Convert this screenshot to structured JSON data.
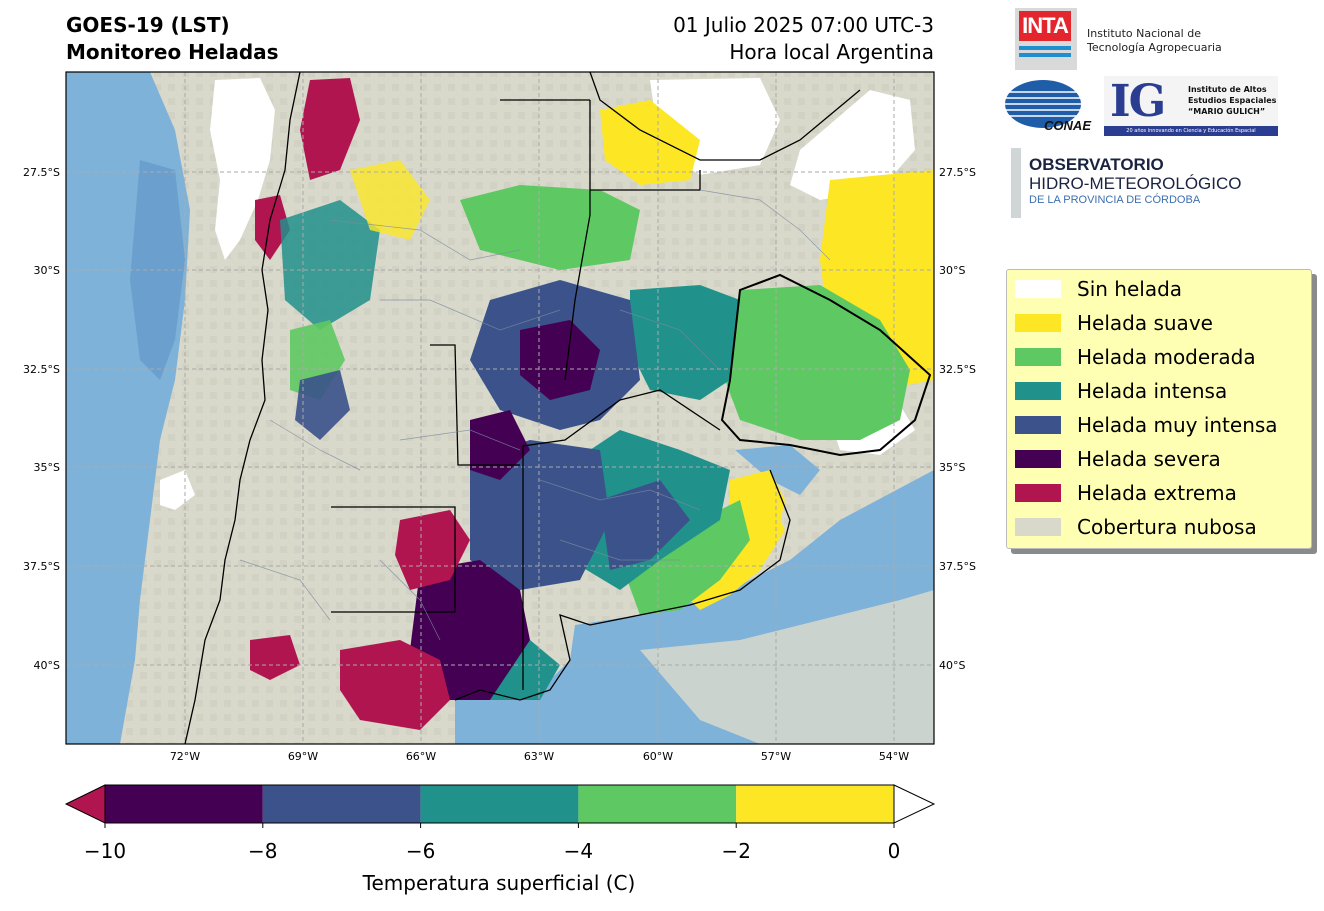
{
  "header": {
    "title_line1": "GOES-19 (LST)",
    "title_line2": "Monitoreo Heladas",
    "date_line1": "01 Julio 2025 07:00 UTC-3",
    "date_line2": "Hora local Argentina"
  },
  "map": {
    "lat_ticks": [
      "27.5°S",
      "30°S",
      "32.5°S",
      "35°S",
      "37.5°S",
      "40°S"
    ],
    "lon_ticks": [
      "72°W",
      "69°W",
      "66°W",
      "63°W",
      "60°W",
      "57°W",
      "54°W"
    ],
    "lat_range": [
      -41.9,
      -24.9
    ],
    "lon_range": [
      -75.0,
      -53.0
    ],
    "grid": true
  },
  "legend": {
    "items": [
      {
        "label": "Sin helada",
        "color": "#ffffff"
      },
      {
        "label": "Helada suave",
        "color": "#fde725"
      },
      {
        "label": "Helada moderada",
        "color": "#5ec962"
      },
      {
        "label": "Helada intensa",
        "color": "#21918c"
      },
      {
        "label": "Helada muy intensa",
        "color": "#3b528b"
      },
      {
        "label": "Helada severa",
        "color": "#440154"
      },
      {
        "label": "Helada extrema",
        "color": "#b0154f"
      },
      {
        "label": "Cobertura nubosa",
        "color": "#d8d8cb"
      }
    ]
  },
  "colorbar": {
    "label": "Temperatura superficial (C)",
    "ticks": [
      "−10",
      "−8",
      "−6",
      "−4",
      "−2",
      "0"
    ],
    "tick_values": [
      -10,
      -8,
      -6,
      -4,
      -2,
      0
    ],
    "bins": [
      {
        "from": -10,
        "to": -8,
        "color": "#440154"
      },
      {
        "from": -8,
        "to": -6,
        "color": "#3b528b"
      },
      {
        "from": -6,
        "to": -4,
        "color": "#21918c"
      },
      {
        "from": -4,
        "to": -2,
        "color": "#5ec962"
      },
      {
        "from": -2,
        "to": 0,
        "color": "#fde725"
      }
    ],
    "under_color": "#b0154f",
    "over_color": "#ffffff"
  },
  "logos": {
    "inta": {
      "mark": "INTA",
      "line1": "Instituto Nacional de",
      "line2": "Tecnología Agropecuaria"
    },
    "conae": {
      "mark": "CONAE"
    },
    "ig": {
      "mark": "IG",
      "line1": "Instituto de Altos",
      "line2": "Estudios Espaciales",
      "line3": "“MARIO GULICH”",
      "bar": "20 años innovando en Ciencia y Educación Espacial"
    },
    "observatorio": {
      "line1": "OBSERVATORIO",
      "line2": "HIDRO-METEOROLÓGICO",
      "line3": "DE LA PROVINCIA DE CÓRDOBA"
    }
  },
  "colors": {
    "cloud": "#d8d8cb",
    "ocean": "#7fb2d9",
    "ocean_dark": "#5e94c6"
  }
}
